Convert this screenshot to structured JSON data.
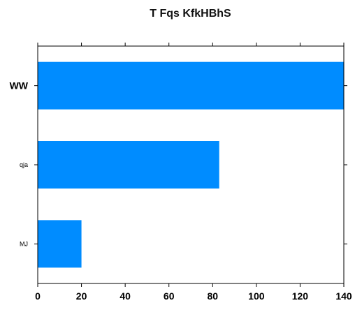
{
  "chart_data": {
    "type": "bar",
    "orientation": "horizontal",
    "title": "T Fqs KfkHBhS",
    "categories": [
      "WW",
      "qja",
      "MJ"
    ],
    "values": [
      140,
      83,
      20
    ],
    "xlim": [
      0,
      140
    ],
    "xticks": [
      0,
      20,
      40,
      60,
      80,
      100,
      120,
      140
    ],
    "xlabel": "",
    "ylabel": "",
    "grid": false,
    "legend": "none",
    "bar_color": "#008cff"
  }
}
